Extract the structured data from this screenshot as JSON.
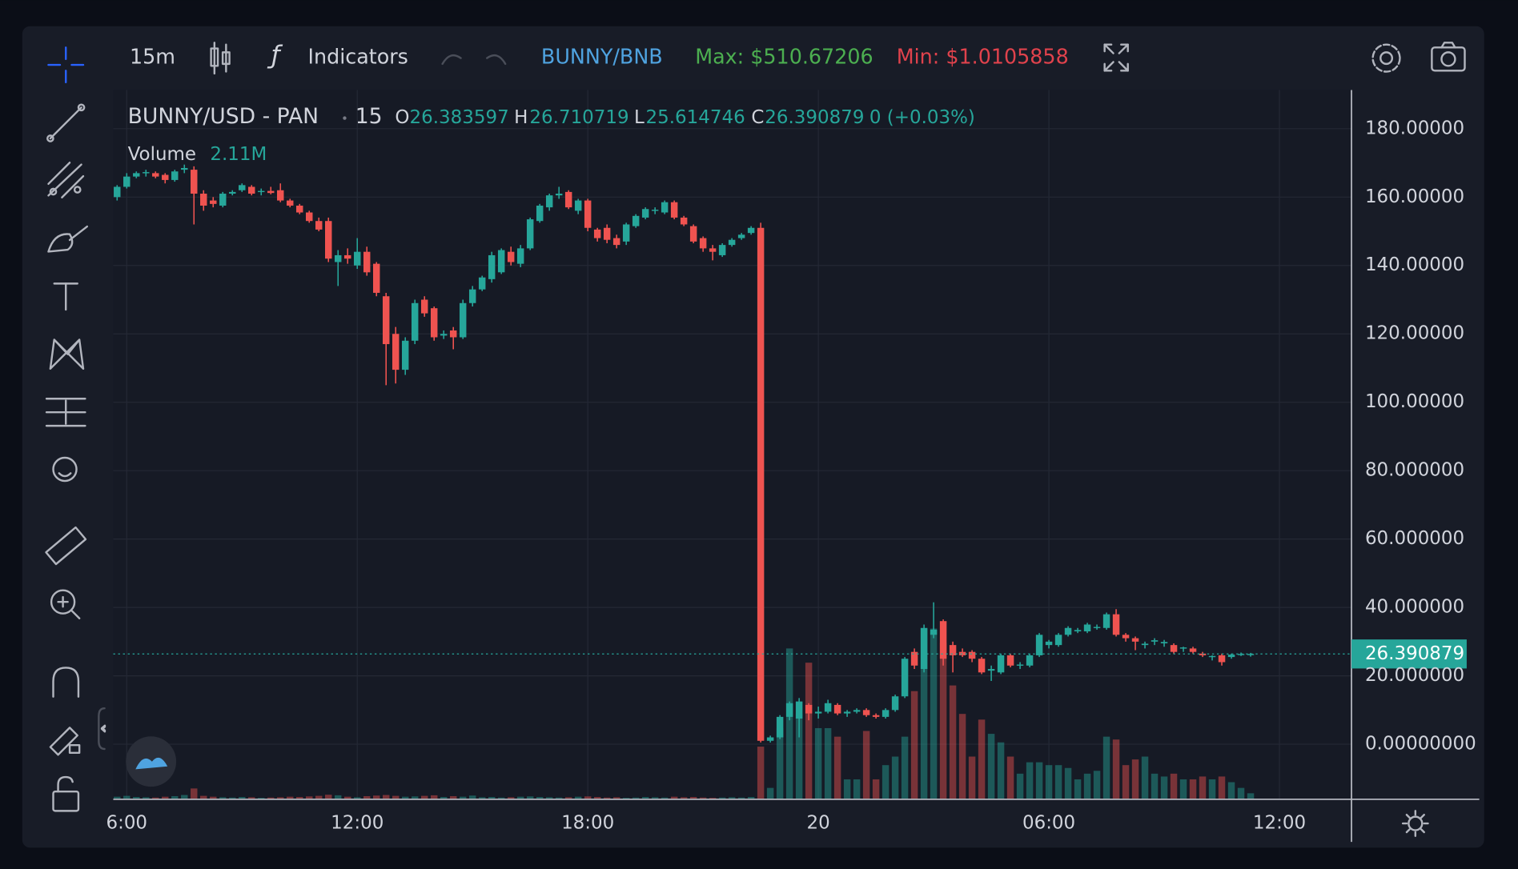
{
  "toolbar": {
    "interval": "15m",
    "indicators": "Indicators",
    "pair": "BUNNY/BNB",
    "max": "Max: $510.67206",
    "min": "Min: $1.0105858"
  },
  "chart_data": {
    "type": "candlestick",
    "title": "BUNNY/USD - PAN",
    "interval": "15",
    "ohlc_labels": [
      "O",
      "H",
      "L",
      "C"
    ],
    "change": "0 (+0.03%)",
    "up_color": "#26a69a",
    "down_color": "#ef5350",
    "grid": true,
    "last_price_line": true,
    "candles": [
      [
        160,
        163.5,
        159,
        163
      ],
      [
        163,
        167,
        162.5,
        166
      ],
      [
        166,
        167.5,
        165.5,
        167
      ],
      [
        167,
        168,
        166,
        167.3
      ],
      [
        167,
        167.5,
        165.5,
        166
      ],
      [
        166.5,
        167,
        164,
        165
      ],
      [
        165,
        168,
        164.5,
        167.5
      ],
      [
        168,
        169.5,
        167,
        168.5
      ],
      [
        168,
        169,
        152,
        161
      ],
      [
        161,
        162,
        156,
        157.5
      ],
      [
        159,
        160,
        157,
        158
      ],
      [
        157.5,
        161.5,
        157,
        161
      ],
      [
        161,
        162,
        160.5,
        161.5
      ],
      [
        162,
        164,
        161.5,
        163.5
      ],
      [
        163,
        163.5,
        160.5,
        161
      ],
      [
        161.5,
        162.5,
        160.5,
        161.8
      ],
      [
        161.8,
        163,
        160.8,
        161.2
      ],
      [
        162,
        164,
        158.5,
        159
      ],
      [
        159,
        159.5,
        157,
        157.5
      ],
      [
        157.5,
        158,
        155,
        155.5
      ],
      [
        155.5,
        156,
        152.5,
        153
      ],
      [
        153,
        154,
        150,
        150.5
      ],
      [
        153,
        154,
        141,
        142
      ],
      [
        141,
        144.5,
        134,
        143
      ],
      [
        143,
        145,
        140.5,
        142
      ],
      [
        140,
        148,
        139,
        144
      ],
      [
        144,
        145.5,
        137,
        138
      ],
      [
        140.5,
        141,
        131,
        132
      ],
      [
        131,
        132,
        105,
        117
      ],
      [
        120,
        122,
        105.5,
        109.5
      ],
      [
        109.5,
        119,
        108,
        118
      ],
      [
        118,
        130,
        117,
        129
      ],
      [
        130,
        131,
        125,
        126
      ],
      [
        127.5,
        128,
        118,
        119
      ],
      [
        119.5,
        121,
        118.5,
        120
      ],
      [
        121,
        122,
        115.5,
        119
      ],
      [
        119,
        130,
        118.5,
        129
      ],
      [
        129,
        134,
        128,
        133
      ],
      [
        133,
        137,
        132.5,
        136.5
      ],
      [
        136,
        144,
        135,
        143
      ],
      [
        138,
        145,
        137.5,
        144.5
      ],
      [
        144,
        145.5,
        140,
        141
      ],
      [
        140.5,
        146,
        139.5,
        145
      ],
      [
        145,
        154,
        144.5,
        153.5
      ],
      [
        153,
        158,
        152.5,
        157.5
      ],
      [
        157,
        161,
        156,
        160.5
      ],
      [
        160.5,
        163,
        159.5,
        161
      ],
      [
        161.5,
        162,
        156.5,
        157
      ],
      [
        156,
        159.5,
        155,
        159
      ],
      [
        159,
        159.5,
        150,
        151
      ],
      [
        150.5,
        151,
        147,
        148
      ],
      [
        151,
        152,
        146.5,
        147.5
      ],
      [
        148,
        149,
        145,
        146
      ],
      [
        147,
        152.5,
        146,
        152
      ],
      [
        151.5,
        155,
        151,
        154.5
      ],
      [
        154,
        157,
        153.5,
        156.5
      ],
      [
        156,
        157,
        155,
        156.3
      ],
      [
        155.5,
        159,
        155,
        158.5
      ],
      [
        158.5,
        159,
        153.5,
        154
      ],
      [
        154,
        154.5,
        151.5,
        152
      ],
      [
        151.5,
        152,
        146.5,
        147
      ],
      [
        148,
        148.5,
        144,
        145
      ],
      [
        145,
        146,
        141.5,
        144
      ],
      [
        143,
        146.5,
        142.5,
        146
      ],
      [
        146,
        148,
        145.5,
        147.5
      ],
      [
        148,
        149.5,
        147.5,
        149
      ],
      [
        149.5,
        151.5,
        149,
        151
      ],
      [
        151,
        152.5,
        0.5,
        1
      ],
      [
        1,
        2.5,
        0.5,
        2
      ],
      [
        2,
        8.5,
        1.5,
        8
      ],
      [
        8,
        12.5,
        7,
        12
      ],
      [
        7.5,
        13.5,
        2,
        12.5
      ],
      [
        11.5,
        12,
        7,
        9
      ],
      [
        9,
        11,
        7.5,
        9.5
      ],
      [
        9.5,
        13,
        9,
        12
      ],
      [
        11.5,
        12,
        8.5,
        9
      ],
      [
        9,
        10,
        8,
        9.5
      ],
      [
        9.5,
        10.5,
        9,
        10
      ],
      [
        10,
        10.5,
        8,
        8.5
      ],
      [
        8.5,
        9,
        7.5,
        8
      ],
      [
        8,
        10.5,
        7.5,
        10
      ],
      [
        10,
        14.5,
        9.5,
        14
      ],
      [
        14,
        25.5,
        13.5,
        25
      ],
      [
        27,
        28,
        22,
        23
      ],
      [
        22,
        35,
        21,
        34
      ],
      [
        32,
        41.5,
        31,
        33.5
      ],
      [
        36,
        36.5,
        23,
        25
      ],
      [
        29,
        30,
        21,
        26
      ],
      [
        27,
        28,
        25.5,
        26
      ],
      [
        27,
        27.5,
        24,
        25
      ],
      [
        25,
        25.5,
        20.5,
        21
      ],
      [
        21.5,
        23,
        18.5,
        22
      ],
      [
        21,
        26.5,
        20.5,
        26
      ],
      [
        26,
        26.5,
        22.5,
        23
      ],
      [
        23,
        24,
        22,
        23.3
      ],
      [
        23,
        26.5,
        22.5,
        26
      ],
      [
        26,
        32.5,
        25.5,
        32
      ],
      [
        29,
        30.5,
        28,
        30
      ],
      [
        29,
        32.5,
        28.5,
        32
      ],
      [
        32,
        34.5,
        31.5,
        34
      ],
      [
        33,
        34,
        32.5,
        33.4
      ],
      [
        33,
        35.5,
        32.5,
        35
      ],
      [
        34,
        35,
        33.5,
        34.3
      ],
      [
        34,
        38.5,
        33.5,
        38
      ],
      [
        38,
        39.5,
        31.5,
        32
      ],
      [
        32,
        32.5,
        30,
        31
      ],
      [
        31,
        31.5,
        27.5,
        30
      ],
      [
        29,
        30,
        28,
        29.4
      ],
      [
        30,
        31,
        29,
        30.4
      ],
      [
        29.5,
        30.5,
        28.5,
        29.9
      ],
      [
        29,
        29.5,
        26.5,
        27
      ],
      [
        28,
        28.5,
        27,
        28.3
      ],
      [
        28,
        28.5,
        26.5,
        27
      ],
      [
        26.5,
        27,
        25.5,
        26
      ],
      [
        25.5,
        26,
        24.5,
        25.8
      ],
      [
        26,
        26.5,
        23,
        24
      ],
      [
        25.5,
        26.5,
        25,
        26.2
      ],
      [
        26.2,
        26.8,
        25.8,
        26.4
      ],
      [
        26.383597,
        26.710719,
        25.614746,
        26.390879
      ]
    ],
    "volume": {
      "name": "Volume",
      "last_label": "2.11M",
      "values": [
        900000,
        1200000,
        800000,
        700000,
        600000,
        900000,
        1100000,
        1500000,
        3800000,
        1200000,
        900000,
        700000,
        600000,
        800000,
        700000,
        500000,
        600000,
        700000,
        900000,
        800000,
        1000000,
        1200000,
        1600000,
        1400000,
        900000,
        700000,
        1100000,
        1300000,
        1500000,
        1200000,
        900000,
        1000000,
        1200000,
        1400000,
        800000,
        1100000,
        900000,
        1300000,
        700000,
        800000,
        600000,
        700000,
        900000,
        1000000,
        800000,
        700000,
        600000,
        700000,
        900000,
        1000000,
        800000,
        600000,
        700000,
        500000,
        600000,
        800000,
        700000,
        600000,
        900000,
        700000,
        800000,
        600000,
        500000,
        600000,
        700000,
        600000,
        800000,
        18500000,
        4000000,
        25000000,
        53000000,
        30000000,
        48000000,
        25000000,
        25000000,
        22000000,
        7000000,
        7000000,
        24000000,
        7000000,
        12000000,
        15000000,
        22000000,
        38000000,
        60000000,
        60000000,
        55000000,
        40000000,
        30000000,
        15000000,
        28000000,
        23000000,
        20000000,
        15000000,
        9000000,
        13000000,
        13000000,
        12000000,
        12000000,
        11000000,
        7000000,
        9000000,
        10000000,
        22000000,
        21000000,
        12000000,
        14000000,
        15000000,
        9000000,
        8000000,
        9000000,
        7000000,
        7000000,
        8000000,
        7000000,
        8000000,
        6000000,
        4000000,
        2110000
      ]
    },
    "xlim": [
      -0.4,
      128.5
    ],
    "xticks": [
      {
        "value": 1,
        "label": "6:00"
      },
      {
        "value": 25,
        "label": "12:00"
      },
      {
        "value": 49,
        "label": "18:00"
      },
      {
        "value": 73,
        "label": "20"
      },
      {
        "value": 97,
        "label": "06:00"
      },
      {
        "value": 121,
        "label": "12:00"
      }
    ],
    "ylim": [
      -16.1,
      191.3
    ],
    "yticks": [
      {
        "value": 0,
        "label": "0.00000000"
      },
      {
        "value": 20,
        "label": "20.000000"
      },
      {
        "value": 40,
        "label": "40.000000"
      },
      {
        "value": 60,
        "label": "60.000000"
      },
      {
        "value": 80,
        "label": "80.000000"
      },
      {
        "value": 100,
        "label": "100.00000"
      },
      {
        "value": 120,
        "label": "120.00000"
      },
      {
        "value": 140,
        "label": "140.00000"
      },
      {
        "value": 160,
        "label": "160.00000"
      },
      {
        "value": 180,
        "label": "180.00000"
      }
    ]
  }
}
